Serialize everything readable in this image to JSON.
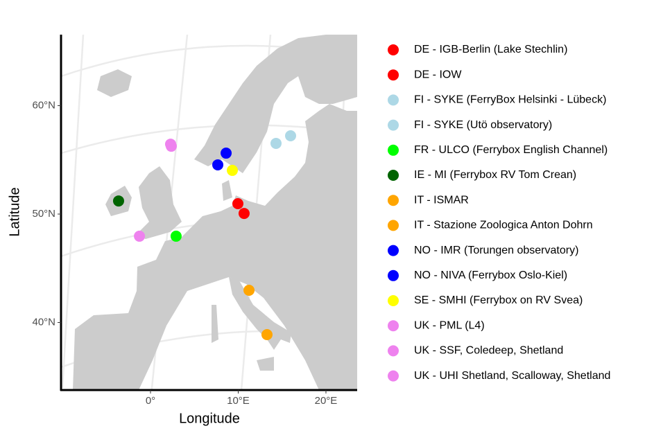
{
  "chart_data": {
    "type": "map",
    "x_label": "Longitude",
    "y_label": "Latitude",
    "xlim": [
      -10.2,
      23.56
    ],
    "ylim": [
      33.77,
      66.55
    ],
    "xticks": [
      {
        "value": 0,
        "label": "0°"
      },
      {
        "value": 10,
        "label": "10°E"
      },
      {
        "value": 20,
        "label": "20°E"
      }
    ],
    "yticks": [
      {
        "value": 40,
        "label": "40°N"
      },
      {
        "value": 50,
        "label": "50°N"
      },
      {
        "value": 60,
        "label": "60°N"
      }
    ],
    "series": [
      {
        "name": "DE - IGB-Berlin (Lake Stechlin)",
        "color": "#ff0000",
        "x": [
          10.67
        ],
        "y": [
          50.06
        ]
      },
      {
        "name": "DE - IOW",
        "color": "#ff0000",
        "x": [
          9.96
        ],
        "y": [
          50.96
        ]
      },
      {
        "name": "FI - SYKE (FerryBox Helsinki - Lübeck)",
        "color": "#add8e6",
        "x": [
          15.97
        ],
        "y": [
          57.22
        ]
      },
      {
        "name": "FI - SYKE (Utö observatory)",
        "color": "#add8e6",
        "x": [
          14.31
        ],
        "y": [
          56.52
        ]
      },
      {
        "name": "FR - ULCO (Ferrybox English Channel)",
        "color": "#00ff00",
        "x": [
          2.92
        ],
        "y": [
          47.96
        ]
      },
      {
        "name": "IE - MI (Ferrybox RV Tom Crean)",
        "color": "#006400",
        "x": [
          -3.64
        ],
        "y": [
          51.21
        ]
      },
      {
        "name": "IT - ISMAR",
        "color": "#ffa500",
        "x": [
          11.23
        ],
        "y": [
          42.97
        ]
      },
      {
        "name": "IT - Stazione Zoologica Anton Dohrn",
        "color": "#ffa500",
        "x": [
          13.28
        ],
        "y": [
          38.88
        ]
      },
      {
        "name": "NO - IMR (Torungen observatory)",
        "color": "#0000ff",
        "x": [
          7.67
        ],
        "y": [
          54.54
        ]
      },
      {
        "name": "NO - NIVA (Ferrybox Oslo-Kiel)",
        "color": "#0000ff",
        "x": [
          8.62
        ],
        "y": [
          55.62
        ]
      },
      {
        "name": "SE - SMHI (Ferrybox on RV Svea)",
        "color": "#ffff00",
        "x": [
          9.33
        ],
        "y": [
          54.03
        ]
      },
      {
        "name": "UK - PML (L4)",
        "color": "#ee82ee",
        "x": [
          -1.26
        ],
        "y": [
          47.96
        ]
      },
      {
        "name": "UK - SSF, Coledeep, Shetland",
        "color": "#ee82ee",
        "x": [
          2.29
        ],
        "y": [
          56.45
        ]
      },
      {
        "name": "UK - UHI Shetland, Scalloway, Shetland",
        "color": "#ee82ee",
        "x": [
          2.37
        ],
        "y": [
          56.26
        ]
      }
    ]
  }
}
